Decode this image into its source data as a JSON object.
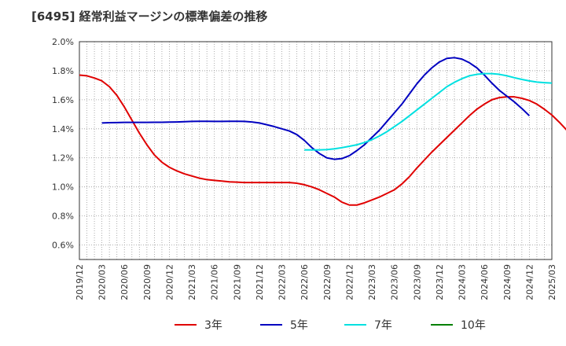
{
  "chart_data": {
    "type": "line",
    "title": "[6495]  経常利益マージンの標準偏差の推移",
    "ylim": [
      0.5,
      2.0
    ],
    "y_ticks": [
      "0.6%",
      "0.8%",
      "1.0%",
      "1.2%",
      "1.4%",
      "1.6%",
      "1.8%",
      "2.0%"
    ],
    "y_tick_values": [
      0.6,
      0.8,
      1.0,
      1.2,
      1.4,
      1.6,
      1.8,
      2.0
    ],
    "x_ticks": [
      "2019/12",
      "2020/03",
      "2020/06",
      "2020/09",
      "2020/12",
      "2021/03",
      "2021/06",
      "2021/09",
      "2021/12",
      "2022/03",
      "2022/06",
      "2022/09",
      "2022/12",
      "2023/03",
      "2023/06",
      "2023/09",
      "2023/12",
      "2024/03",
      "2024/06",
      "2024/09",
      "2024/12",
      "2025/03"
    ],
    "grid": true,
    "legend_position": "bottom",
    "series": [
      {
        "name": "3年",
        "color": "#e00000",
        "start_index": 0,
        "values": [
          1.77,
          1.765,
          1.75,
          1.73,
          1.69,
          1.63,
          1.55,
          1.46,
          1.37,
          1.29,
          1.22,
          1.17,
          1.135,
          1.11,
          1.09,
          1.075,
          1.06,
          1.05,
          1.045,
          1.04,
          1.035,
          1.033,
          1.03,
          1.03,
          1.03,
          1.03,
          1.03,
          1.03,
          1.03,
          1.025,
          1.015,
          1.0,
          0.98,
          0.955,
          0.93,
          0.895,
          0.875,
          0.875,
          0.89,
          0.91,
          0.93,
          0.955,
          0.98,
          1.02,
          1.07,
          1.13,
          1.185,
          1.24,
          1.29,
          1.34,
          1.39,
          1.44,
          1.49,
          1.535,
          1.57,
          1.6,
          1.615,
          1.62,
          1.62,
          1.61,
          1.595,
          1.57,
          1.535,
          1.495,
          1.445,
          1.39,
          1.32,
          1.24
        ]
      },
      {
        "name": "5年",
        "color": "#0000c0",
        "start_index": 3,
        "values": [
          1.44,
          1.442,
          1.443,
          1.444,
          1.444,
          1.444,
          1.444,
          1.445,
          1.445,
          1.446,
          1.447,
          1.449,
          1.451,
          1.452,
          1.452,
          1.451,
          1.451,
          1.452,
          1.452,
          1.451,
          1.447,
          1.44,
          1.428,
          1.415,
          1.4,
          1.385,
          1.36,
          1.32,
          1.27,
          1.23,
          1.2,
          1.19,
          1.195,
          1.215,
          1.25,
          1.29,
          1.34,
          1.39,
          1.45,
          1.51,
          1.57,
          1.64,
          1.71,
          1.77,
          1.82,
          1.86,
          1.885,
          1.89,
          1.88,
          1.855,
          1.82,
          1.77,
          1.715,
          1.665,
          1.625,
          1.585,
          1.54,
          1.49
        ]
      },
      {
        "name": "7年",
        "color": "#00e0e0",
        "start_index": 30,
        "values": [
          1.255,
          1.255,
          1.255,
          1.257,
          1.262,
          1.27,
          1.28,
          1.29,
          1.305,
          1.325,
          1.35,
          1.38,
          1.415,
          1.45,
          1.49,
          1.53,
          1.57,
          1.61,
          1.65,
          1.69,
          1.72,
          1.745,
          1.765,
          1.775,
          1.78,
          1.78,
          1.775,
          1.765,
          1.752,
          1.74,
          1.73,
          1.722,
          1.718,
          1.715
        ]
      },
      {
        "name": "10年",
        "color": "#008000",
        "start_index": 0,
        "values": []
      }
    ]
  }
}
